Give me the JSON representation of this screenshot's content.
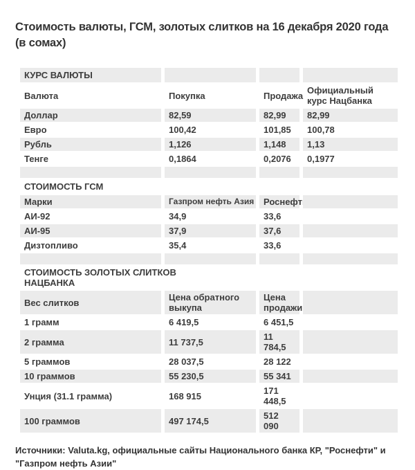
{
  "page": {
    "title": "Стоимость валюты, ГСМ, золотых слитков на 16 декабря 2020 года (в сомах)",
    "sources": "Источники: Valuta.kg, официальные сайты Национального банка КР, \"Роснефти\" и \"Газпром нефть Азии\""
  },
  "colors": {
    "stripe": "#ebebeb",
    "text": "#3d3d3d",
    "title_text": "#333333",
    "background": "#ffffff"
  },
  "currency": {
    "section_title": "КУРС ВАЛЮТЫ",
    "headers": [
      "Валюта",
      "Покупка",
      "Продажа",
      "Официальный курс Нацбанка"
    ],
    "rows": [
      [
        "Доллар",
        "82,59",
        "82,99",
        "82,99"
      ],
      [
        "Евро",
        "100,42",
        "101,85",
        "100,78"
      ],
      [
        "Рубль",
        "1,126",
        "1,148",
        "1,13"
      ],
      [
        "Тенге",
        "0,1864",
        "0,2076",
        "0,1977"
      ]
    ]
  },
  "fuel": {
    "section_title": "СТОИМОСТЬ ГСМ",
    "headers": [
      "Марки",
      "Газпром нефть Азия",
      "Роснефть"
    ],
    "rows": [
      [
        "АИ-92",
        "34,9",
        "33,6"
      ],
      [
        "АИ-95",
        "37,9",
        "37,6"
      ],
      [
        "Дизтопливо",
        "35,4",
        "33,6"
      ]
    ]
  },
  "gold": {
    "section_title": "СТОИМОСТЬ ЗОЛОТЫХ СЛИТКОВ НАЦБАНКА",
    "headers": [
      "Вес слитков",
      "Цена обратного выкупа",
      "Цена продажи"
    ],
    "rows": [
      [
        "1 грамм",
        "6 419,5",
        "6 451,5"
      ],
      [
        "2 грамма",
        "11 737,5",
        "11 784,5"
      ],
      [
        "5 граммов",
        "28 037,5",
        "28 122"
      ],
      [
        "10 граммов",
        "55 230,5",
        "55 341"
      ],
      [
        "Унция (31.1 грамма)",
        "168 915",
        "171 448,5"
      ],
      [
        "100 граммов",
        "497 174,5",
        "512 090"
      ]
    ]
  }
}
